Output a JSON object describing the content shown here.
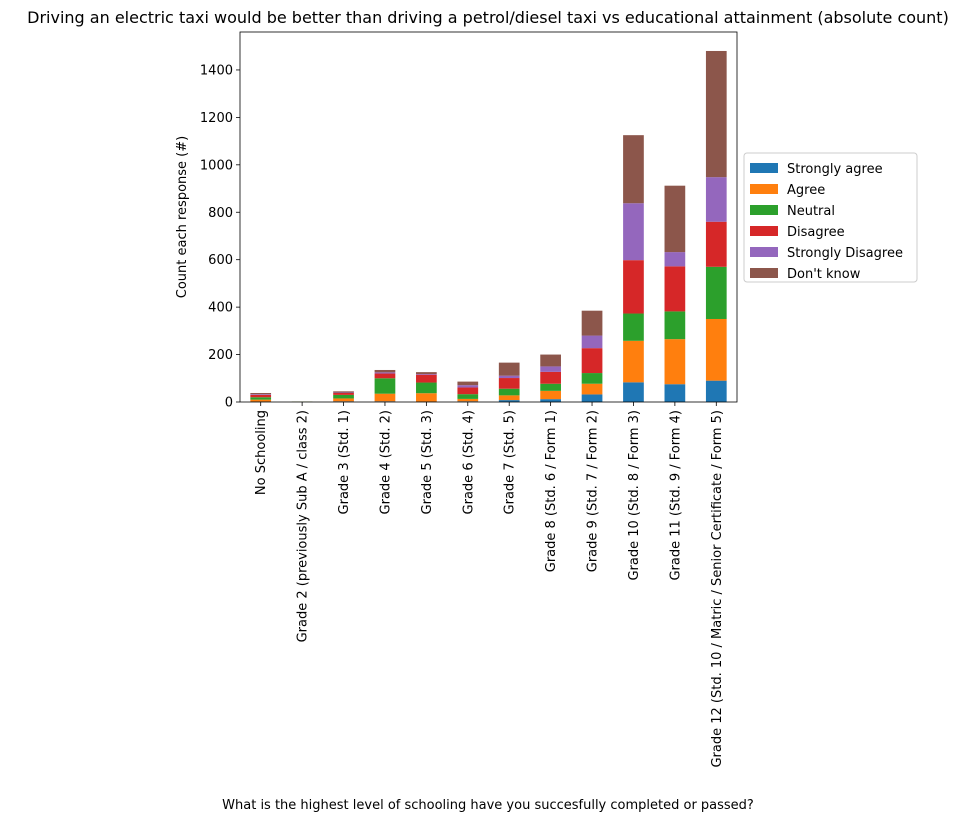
{
  "chart_data": {
    "type": "bar",
    "stacked": true,
    "title": "Driving an electric taxi would be better than driving a petrol/diesel taxi vs educational attainment (absolute count)",
    "xlabel": "What is the highest level of schooling have you succesfully completed or passed?",
    "ylabel": "Count each response (#)",
    "ylim": [
      0,
      1560
    ],
    "yticks": [
      0,
      200,
      400,
      600,
      800,
      1000,
      1200,
      1400
    ],
    "grid": false,
    "legend_position": "center-right outside",
    "categories": [
      "No Schooling",
      "Grade 2 (previously Sub A / class 2)",
      "Grade 3 (Std. 1)",
      "Grade 4 (Std. 2)",
      "Grade 5 (Std. 3)",
      "Grade 6 (Std. 4)",
      "Grade 7 (Std. 5)",
      "Grade 8 (Std. 6 / Form 1)",
      "Grade 9 (Std. 7 / Form 2)",
      "Grade 10 (Std. 8 / Form 3)",
      "Grade 11 (Std. 9 / Form 4)",
      "Grade 12 (Std. 10 / Matric / Senior Certificate / Form 5)"
    ],
    "series": [
      {
        "name": "Strongly agree",
        "color": "#1f77b4",
        "values": [
          2,
          0,
          3,
          3,
          2,
          3,
          8,
          12,
          32,
          83,
          75,
          90
        ]
      },
      {
        "name": "Agree",
        "color": "#ff7f0e",
        "values": [
          8,
          1,
          12,
          32,
          35,
          10,
          20,
          35,
          45,
          175,
          190,
          260
        ]
      },
      {
        "name": "Neutral",
        "color": "#2ca02c",
        "values": [
          10,
          1,
          15,
          65,
          45,
          20,
          28,
          30,
          45,
          115,
          117,
          220
        ]
      },
      {
        "name": "Disagree",
        "color": "#d62728",
        "values": [
          10,
          0,
          8,
          20,
          33,
          28,
          45,
          50,
          105,
          225,
          190,
          190
        ]
      },
      {
        "name": "Strongly Disagree",
        "color": "#9467bd",
        "values": [
          3,
          0,
          2,
          5,
          3,
          10,
          10,
          23,
          53,
          240,
          60,
          188
        ]
      },
      {
        "name": "Don't know",
        "color": "#8c564b",
        "values": [
          5,
          0,
          5,
          10,
          8,
          15,
          55,
          50,
          105,
          287,
          280,
          532
        ]
      }
    ]
  }
}
